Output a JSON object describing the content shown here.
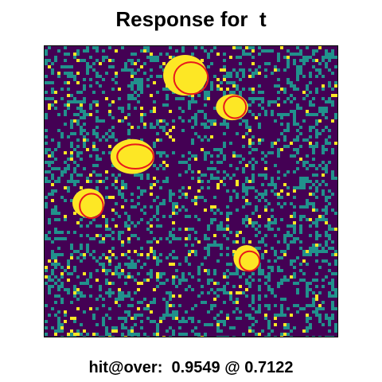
{
  "title": "Response for  t",
  "caption": "hit@over:  0.9549 @ 0.7122",
  "chart_data": {
    "type": "heatmap",
    "title": "Response for  t",
    "xlabel": "",
    "ylabel": "",
    "grid": false,
    "legend": "none",
    "colors": {
      "background": "#440154",
      "mid": "#21918c",
      "high": "#fde725",
      "contour": "#e8181c"
    },
    "value_classes": [
      "low",
      "mid",
      "high"
    ],
    "blobs": [
      {
        "label": "blob-1",
        "x": 0.48,
        "y": 0.9,
        "rx": 0.075,
        "ry": 0.07
      },
      {
        "label": "blob-2",
        "x": 0.64,
        "y": 0.79,
        "rx": 0.055,
        "ry": 0.045
      },
      {
        "label": "blob-3",
        "x": 0.3,
        "y": 0.62,
        "rx": 0.075,
        "ry": 0.06
      },
      {
        "label": "blob-4",
        "x": 0.15,
        "y": 0.46,
        "rx": 0.055,
        "ry": 0.05
      },
      {
        "label": "blob-5",
        "x": 0.69,
        "y": 0.27,
        "rx": 0.045,
        "ry": 0.045
      }
    ],
    "contours": [
      {
        "label": "contour-1",
        "x": 0.5,
        "y": 0.89,
        "rx": 0.058,
        "ry": 0.055
      },
      {
        "label": "contour-2",
        "x": 0.65,
        "y": 0.79,
        "rx": 0.038,
        "ry": 0.038
      },
      {
        "label": "contour-3",
        "x": 0.31,
        "y": 0.62,
        "rx": 0.062,
        "ry": 0.042
      },
      {
        "label": "contour-4",
        "x": 0.16,
        "y": 0.45,
        "rx": 0.04,
        "ry": 0.042
      },
      {
        "label": "contour-5",
        "x": 0.7,
        "y": 0.26,
        "rx": 0.034,
        "ry": 0.034
      }
    ]
  }
}
